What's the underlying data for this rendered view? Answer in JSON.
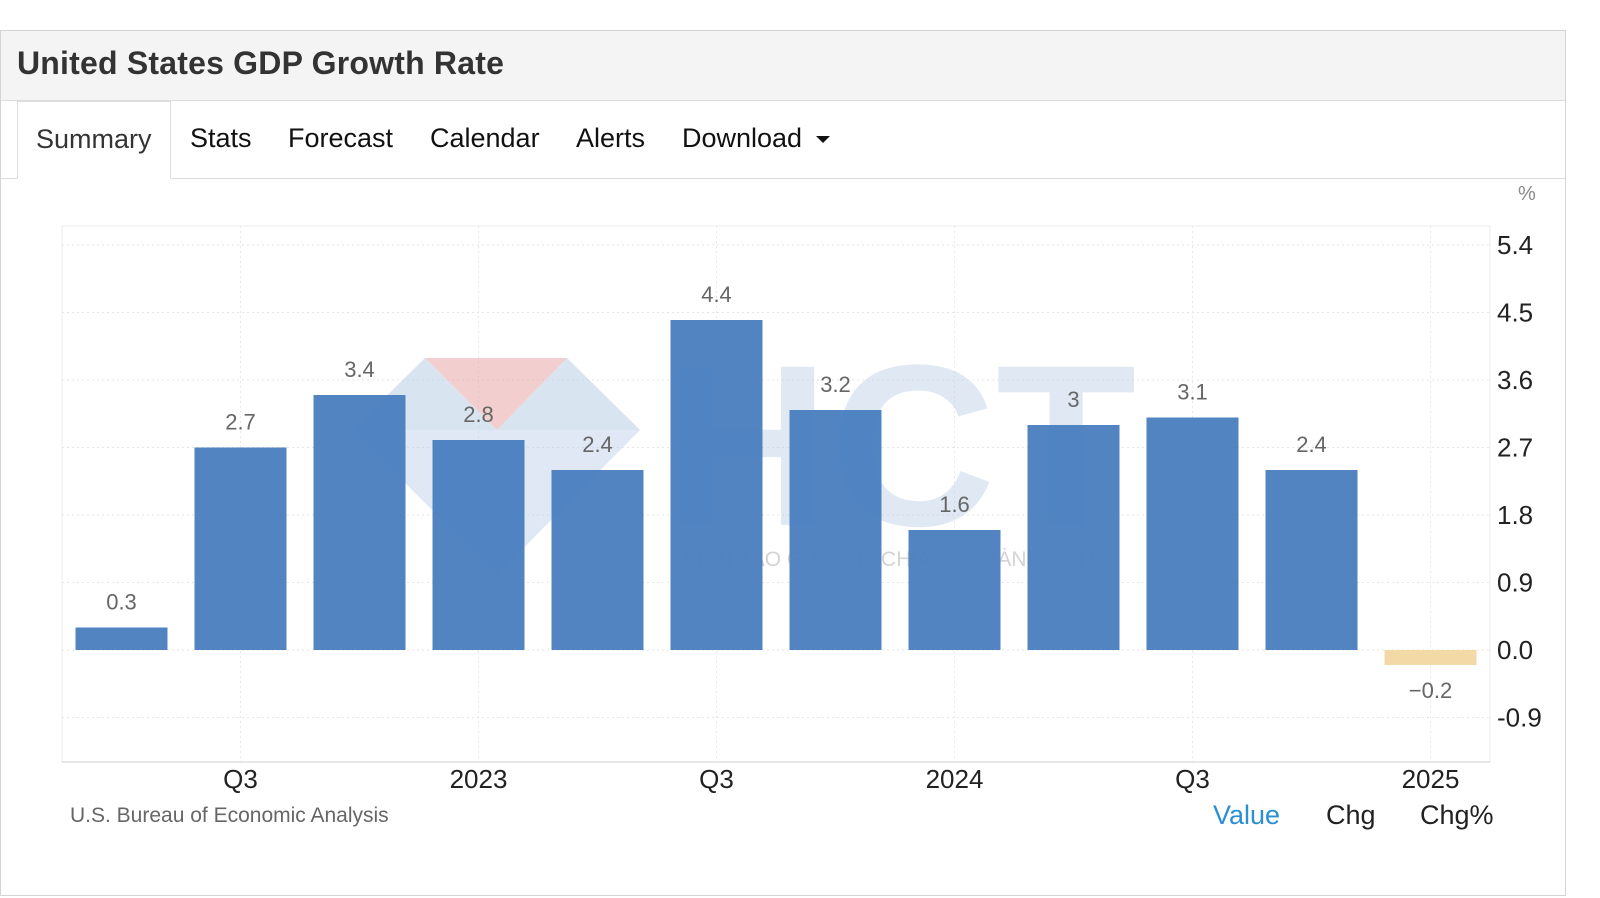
{
  "title": "United States GDP Growth Rate",
  "tabs": [
    {
      "label": "Summary"
    },
    {
      "label": "Stats"
    },
    {
      "label": "Forecast"
    },
    {
      "label": "Calendar"
    },
    {
      "label": "Alerts"
    },
    {
      "label": "Download"
    }
  ],
  "source": "U.S. Bureau of Economic Analysis",
  "view_toggle": [
    {
      "label": "Value",
      "active": true
    },
    {
      "label": "Chg",
      "active": false
    },
    {
      "label": "Chg%",
      "active": false
    }
  ],
  "watermark": {
    "text": "HCT",
    "tagline": "KIẾN TẠO GIÁ TRỊ - CHIA SẺ THÀNH CÔNG"
  },
  "colors": {
    "positive_bar": "#4a7fbe",
    "negative_bar": "#f2d9a6",
    "active_toggle": "#2b8fd6"
  },
  "chart_data": {
    "type": "bar",
    "unit": "%",
    "x_tick_labels": [
      "Q3",
      "2023",
      "Q3",
      "2024",
      "Q3",
      "2025"
    ],
    "values": [
      0.3,
      2.7,
      3.4,
      2.8,
      2.4,
      4.4,
      3.2,
      1.6,
      3,
      3.1,
      2.4,
      -0.2
    ],
    "data_labels": [
      "0.3",
      "2.7",
      "3.4",
      "2.8",
      "2.4",
      "4.4",
      "3.2",
      "1.6",
      "3",
      "3.1",
      "2.4",
      "−0.2"
    ],
    "y_ticks": [
      "5.4",
      "4.5",
      "3.6",
      "2.7",
      "1.8",
      "0.9",
      "0.0",
      "-0.9"
    ],
    "y_tick_values": [
      5.4,
      4.5,
      3.6,
      2.7,
      1.8,
      0.9,
      0,
      -0.9
    ],
    "ylim": [
      -1.5,
      5.5
    ],
    "y_axis_position": "right",
    "grid": true
  }
}
